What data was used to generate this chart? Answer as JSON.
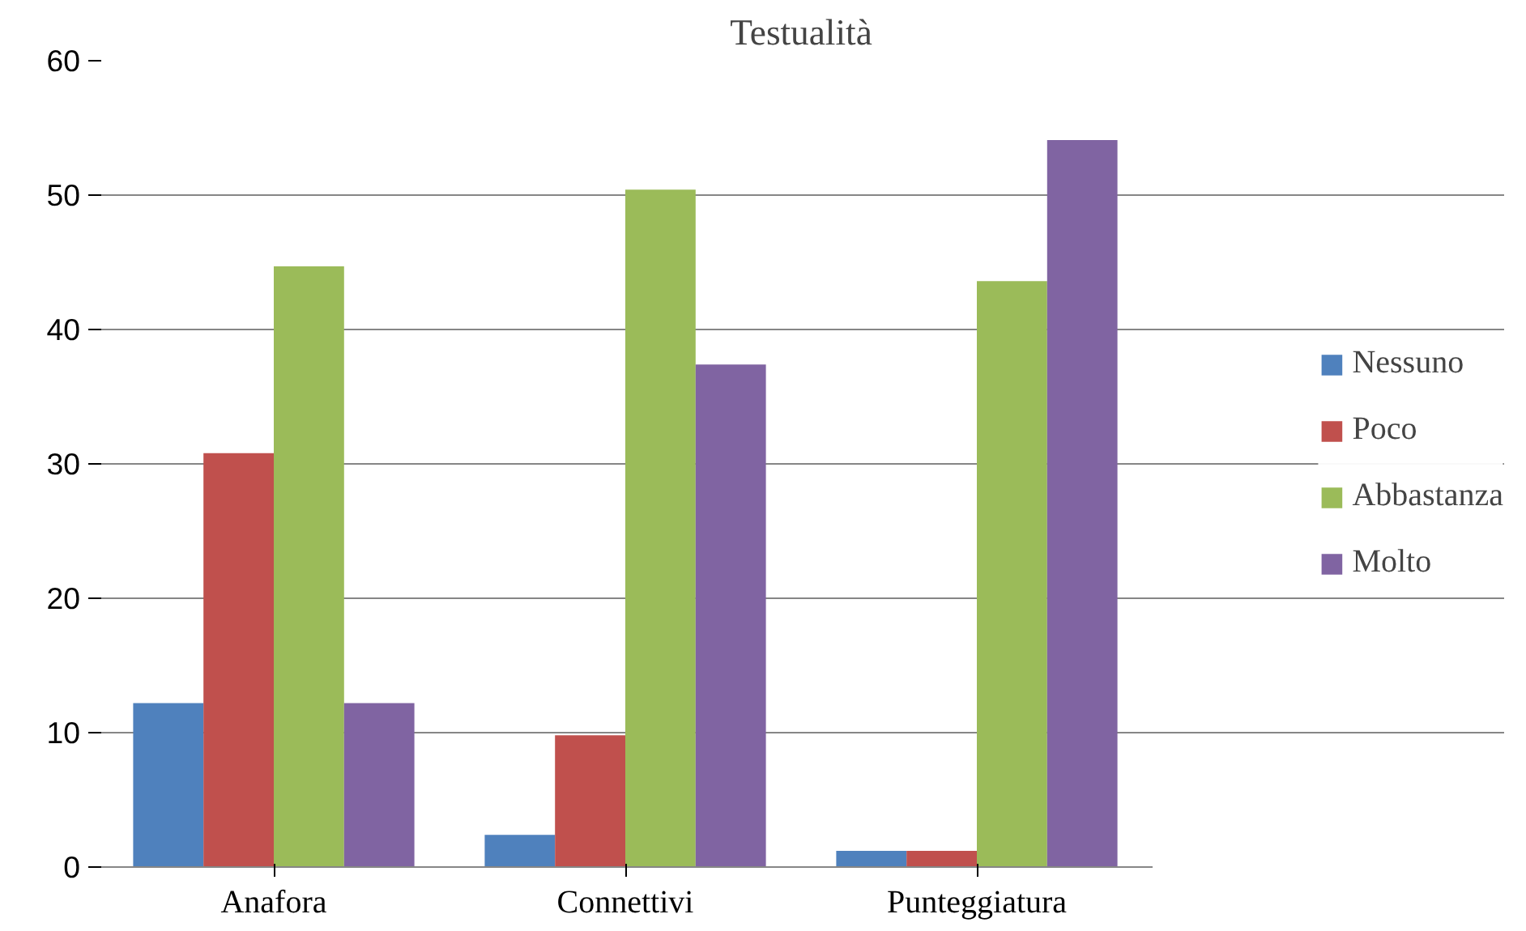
{
  "chart_data": {
    "type": "bar",
    "title": "Testualità",
    "categories": [
      "Anafora",
      "Connettivi",
      "Punteggiatura"
    ],
    "series": [
      {
        "name": "Nessuno",
        "color": "#4f81bd",
        "values": [
          12.2,
          2.4,
          1.2
        ]
      },
      {
        "name": "Poco",
        "color": "#c0504d",
        "values": [
          30.8,
          9.8,
          1.2
        ]
      },
      {
        "name": "Abbastanza",
        "color": "#9bbb59",
        "values": [
          44.7,
          50.4,
          43.6
        ]
      },
      {
        "name": "Molto",
        "color": "#8064a2",
        "values": [
          12.2,
          37.4,
          54.1
        ]
      }
    ],
    "ylim": [
      0,
      60
    ],
    "yticks": [
      0,
      10,
      20,
      30,
      40,
      50,
      60
    ],
    "grid": "y",
    "legend": "right"
  }
}
